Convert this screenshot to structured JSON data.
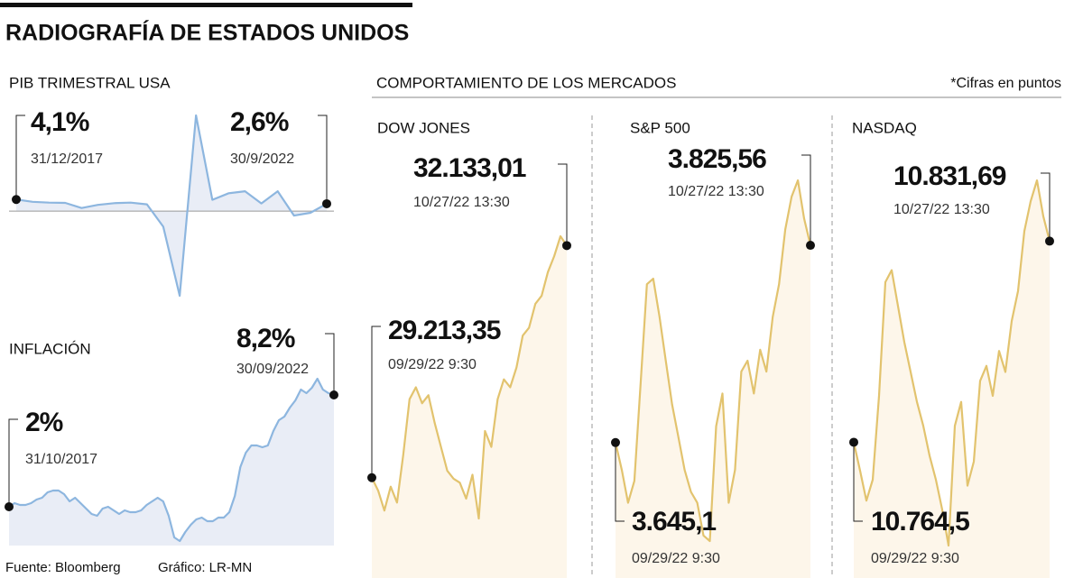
{
  "title": "RADIOGRAFÍA DE ESTADOS UNIDOS",
  "section": "COMPORTAMIENTO DE LOS MERCADOS",
  "note": "*Cifras en puntos",
  "source": "Fuente: Bloomberg",
  "credit": "Gráfico: LR-MN",
  "chart_data": [
    {
      "type": "line",
      "title": "PIB TRIMESTRAL USA",
      "color": "#8db6df",
      "fill": "#e9edf6",
      "categories": [
        "31/12/2017",
        null,
        null,
        null,
        null,
        null,
        null,
        null,
        null,
        null,
        null,
        null,
        null,
        null,
        null,
        null,
        null,
        null,
        null,
        "30/9/2022"
      ],
      "values": [
        4.1,
        3.3,
        3.0,
        2.9,
        1.1,
        2.2,
        2.8,
        3.0,
        2.4,
        -5.5,
        -29.9,
        33.8,
        4.0,
        6.3,
        7.0,
        2.7,
        7.0,
        -1.6,
        -0.6,
        2.6
      ],
      "value_labels": [
        "4,1%",
        null,
        null,
        null,
        null,
        null,
        null,
        null,
        null,
        null,
        null,
        null,
        null,
        null,
        null,
        null,
        null,
        null,
        null,
        "2,6%"
      ]
    },
    {
      "type": "line",
      "title": "INFLACIÓN",
      "color": "#8db6df",
      "fill": "#e9edf6",
      "categories": [
        "31/10/2017",
        null,
        null,
        null,
        null,
        null,
        null,
        null,
        null,
        null,
        null,
        null,
        null,
        null,
        null,
        null,
        null,
        null,
        null,
        null,
        null,
        null,
        null,
        null,
        null,
        null,
        null,
        null,
        null,
        null,
        null,
        null,
        null,
        null,
        null,
        null,
        null,
        null,
        null,
        null,
        null,
        null,
        null,
        null,
        null,
        null,
        null,
        null,
        null,
        null,
        null,
        null,
        null,
        null,
        null,
        null,
        null,
        null,
        null,
        "30/09/2022"
      ],
      "values": [
        2.0,
        2.2,
        2.1,
        2.1,
        2.2,
        2.4,
        2.5,
        2.8,
        2.9,
        2.9,
        2.7,
        2.3,
        2.5,
        2.2,
        1.9,
        1.6,
        1.5,
        1.9,
        2.0,
        1.8,
        1.6,
        1.8,
        1.7,
        1.7,
        1.8,
        2.1,
        2.3,
        2.5,
        2.3,
        1.5,
        0.3,
        0.1,
        0.6,
        1.0,
        1.3,
        1.4,
        1.2,
        1.2,
        1.4,
        1.4,
        1.7,
        2.6,
        4.2,
        5.0,
        5.4,
        5.4,
        5.3,
        5.4,
        6.2,
        6.8,
        7.0,
        7.5,
        7.9,
        8.5,
        8.3,
        8.6,
        9.1,
        8.5,
        8.3,
        8.2
      ],
      "value_labels": [
        "2%",
        null,
        null,
        null,
        null,
        null,
        null,
        null,
        null,
        null,
        null,
        null,
        null,
        null,
        null,
        null,
        null,
        null,
        null,
        null,
        null,
        null,
        null,
        null,
        null,
        null,
        null,
        null,
        null,
        null,
        null,
        null,
        null,
        null,
        null,
        null,
        null,
        null,
        null,
        null,
        null,
        null,
        null,
        null,
        null,
        null,
        null,
        null,
        null,
        null,
        null,
        null,
        null,
        null,
        null,
        null,
        null,
        null,
        null,
        "8,2%"
      ]
    },
    {
      "type": "line",
      "title": "DOW JONES",
      "color": "#e2c36e",
      "fill": "#fdf6ea",
      "categories": [
        "09/29/22 9:30",
        null,
        null,
        null,
        null,
        null,
        null,
        null,
        null,
        null,
        null,
        null,
        null,
        null,
        null,
        null,
        null,
        null,
        null,
        null,
        null,
        null,
        null,
        null,
        null,
        null,
        null,
        null,
        null,
        null,
        null,
        "10/27/22 13:30"
      ],
      "values": [
        29213.35,
        29050,
        28800,
        29100,
        28900,
        29500,
        30200,
        30350,
        30150,
        30250,
        29900,
        29600,
        29300,
        29200,
        29150,
        28950,
        29250,
        28700,
        29800,
        29600,
        30200,
        30450,
        30350,
        30600,
        31000,
        31100,
        31400,
        31500,
        31800,
        32000,
        32250,
        32133.01
      ],
      "value_labels": [
        "29.213,35",
        null,
        null,
        null,
        null,
        null,
        null,
        null,
        null,
        null,
        null,
        null,
        null,
        null,
        null,
        null,
        null,
        null,
        null,
        null,
        null,
        null,
        null,
        null,
        null,
        null,
        null,
        null,
        null,
        null,
        null,
        "32.133,01"
      ]
    },
    {
      "type": "line",
      "title": "S&P 500",
      "color": "#e2c36e",
      "fill": "#fdf6ea",
      "categories": [
        "09/29/22 9:30",
        null,
        null,
        null,
        null,
        null,
        null,
        null,
        null,
        null,
        null,
        null,
        null,
        null,
        null,
        null,
        null,
        null,
        null,
        null,
        null,
        null,
        null,
        null,
        null,
        null,
        null,
        null,
        null,
        null,
        null,
        "10/27/22 13:30"
      ],
      "values": [
        3645.1,
        3620,
        3590,
        3610,
        3700,
        3790,
        3795,
        3760,
        3720,
        3680,
        3650,
        3620,
        3600,
        3590,
        3560,
        3555,
        3660,
        3690,
        3590,
        3620,
        3710,
        3720,
        3690,
        3730,
        3710,
        3760,
        3790,
        3840,
        3870,
        3885,
        3850,
        3825.56
      ],
      "value_labels": [
        "3.645,1",
        null,
        null,
        null,
        null,
        null,
        null,
        null,
        null,
        null,
        null,
        null,
        null,
        null,
        null,
        null,
        null,
        null,
        null,
        null,
        null,
        null,
        null,
        null,
        null,
        null,
        null,
        null,
        null,
        null,
        null,
        "3.825,56"
      ]
    },
    {
      "type": "line",
      "title": "NASDAQ",
      "color": "#e2c36e",
      "fill": "#fdf6ea",
      "categories": [
        "09/29/22 9:30",
        null,
        null,
        null,
        null,
        null,
        null,
        null,
        null,
        null,
        null,
        null,
        null,
        null,
        null,
        null,
        null,
        null,
        null,
        null,
        null,
        null,
        null,
        null,
        null,
        null,
        null,
        null,
        null,
        null,
        null,
        "10/27/22 13:30"
      ],
      "values": [
        10764.5,
        10755,
        10745,
        10752,
        10780,
        10818,
        10822,
        10810,
        10798,
        10788,
        10778,
        10770,
        10760,
        10752,
        10742,
        10730,
        10770,
        10778,
        10750,
        10758,
        10785,
        10790,
        10780,
        10795,
        10788,
        10805,
        10815,
        10835,
        10845,
        10852,
        10840,
        10831.69
      ],
      "value_labels": [
        "10.764,5",
        null,
        null,
        null,
        null,
        null,
        null,
        null,
        null,
        null,
        null,
        null,
        null,
        null,
        null,
        null,
        null,
        null,
        null,
        null,
        null,
        null,
        null,
        null,
        null,
        null,
        null,
        null,
        null,
        null,
        null,
        "10.831,69"
      ]
    }
  ]
}
